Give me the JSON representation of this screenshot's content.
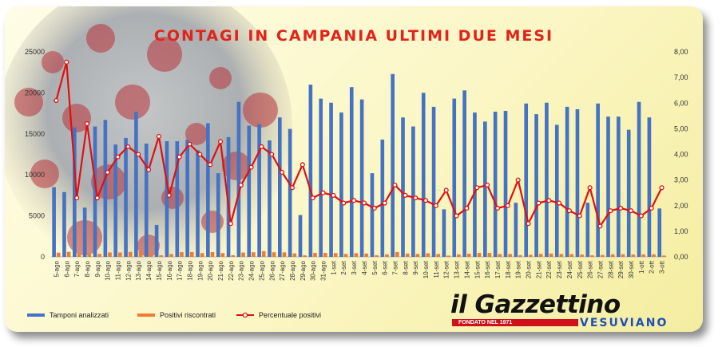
{
  "title": "CONTAGI IN CAMPANIA ULTIMI DUE MESI",
  "legend": {
    "tamponi": "Tamponi analizzati",
    "positivi": "Positivi riscontrati",
    "percentuale": "Percentuale positivi"
  },
  "logo": {
    "main": "il Gazzettino",
    "founded": "FONDATO NEL 1971",
    "sub": "VESUVIANO"
  },
  "colors": {
    "title": "#e2231a",
    "tamponi": "#4472c4",
    "positivi": "#ed7d31",
    "percentuale": "#e01010"
  },
  "chart_data": {
    "type": "bar",
    "title": "CONTAGI IN CAMPANIA ULTIMI DUE MESI",
    "categories": [
      "5-ago",
      "6-ago",
      "7-ago",
      "8-ago",
      "9-ago",
      "10-ago",
      "11-ago",
      "12-ago",
      "13-ago",
      "14-ago",
      "15-ago",
      "16-ago",
      "17-ago",
      "18-ago",
      "19-ago",
      "20-ago",
      "21-ago",
      "22-ago",
      "23-ago",
      "24-ago",
      "25-ago",
      "26-ago",
      "27-ago",
      "28-ago",
      "29-ago",
      "30-ago",
      "31-ago",
      "1-set",
      "2-set",
      "3-set",
      "4-set",
      "5-set",
      "6-set",
      "7-set",
      "8-set",
      "9-set",
      "10-set",
      "11-set",
      "12-set",
      "13-set",
      "14-set",
      "15-set",
      "16-set",
      "17-set",
      "18-set",
      "19-set",
      "20-set",
      "21-set",
      "22-set",
      "23-set",
      "24-set",
      "25-set",
      "26-set",
      "27-set",
      "28-set",
      "29-set",
      "30-set",
      "1-ott",
      "2-ott",
      "3-ott"
    ],
    "ylim_left": [
      0,
      25000
    ],
    "yticks_left": [
      "0",
      "5000",
      "10000",
      "15000",
      "20000",
      "25000"
    ],
    "ylim_right": [
      0,
      8
    ],
    "yticks_right": [
      "0,00",
      "1,00",
      "2,00",
      "3,00",
      "4,00",
      "5,00",
      "6,00",
      "7,00",
      "8,00"
    ],
    "legend_position": "bottom-left",
    "series": [
      {
        "name": "Tamponi analizzati",
        "type": "bar",
        "axis": "left",
        "values": [
          8500,
          7900,
          15800,
          6000,
          15900,
          16700,
          13700,
          14500,
          17700,
          13800,
          3900,
          14100,
          14100,
          14300,
          13000,
          16300,
          10200,
          14600,
          18900,
          16000,
          16200,
          14200,
          17000,
          15600,
          5100,
          21000,
          19300,
          18800,
          17600,
          20700,
          19200,
          10200,
          14300,
          22300,
          17000,
          15900,
          20000,
          18300,
          5800,
          19300,
          20300,
          17600,
          16500,
          17700,
          17800,
          6600,
          18700,
          17400,
          18800,
          16100,
          18300,
          18000,
          6600,
          18700,
          17100,
          17100,
          15500,
          18900,
          17000,
          5900
        ]
      },
      {
        "name": "Positivi riscontrati",
        "type": "bar",
        "axis": "left",
        "values": [
          510,
          610,
          360,
          320,
          360,
          540,
          530,
          600,
          700,
          480,
          190,
          340,
          570,
          590,
          460,
          580,
          460,
          190,
          530,
          560,
          690,
          560,
          550,
          420,
          180,
          480,
          480,
          460,
          360,
          450,
          400,
          190,
          310,
          580,
          400,
          360,
          440,
          350,
          150,
          300,
          380,
          480,
          470,
          340,
          350,
          200,
          250,
          360,
          400,
          340,
          330,
          280,
          180,
          230,
          310,
          320,
          280,
          300,
          310,
          160
        ]
      },
      {
        "name": "Percentuale positivi",
        "type": "line",
        "axis": "right",
        "values": [
          6.1,
          7.6,
          2.3,
          5.2,
          2.3,
          3.3,
          3.9,
          4.3,
          4.0,
          3.4,
          4.7,
          2.4,
          3.9,
          4.4,
          4.0,
          3.6,
          4.5,
          1.3,
          2.8,
          3.5,
          4.3,
          4.0,
          3.3,
          2.7,
          3.6,
          2.3,
          2.5,
          2.4,
          2.1,
          2.2,
          2.1,
          1.9,
          2.1,
          2.8,
          2.4,
          2.3,
          2.2,
          2.0,
          2.6,
          1.6,
          1.9,
          2.7,
          2.8,
          1.9,
          2.0,
          3.0,
          1.3,
          2.1,
          2.2,
          2.1,
          1.8,
          1.6,
          2.7,
          1.2,
          1.8,
          1.9,
          1.8,
          1.6,
          1.9,
          2.7
        ]
      }
    ]
  }
}
